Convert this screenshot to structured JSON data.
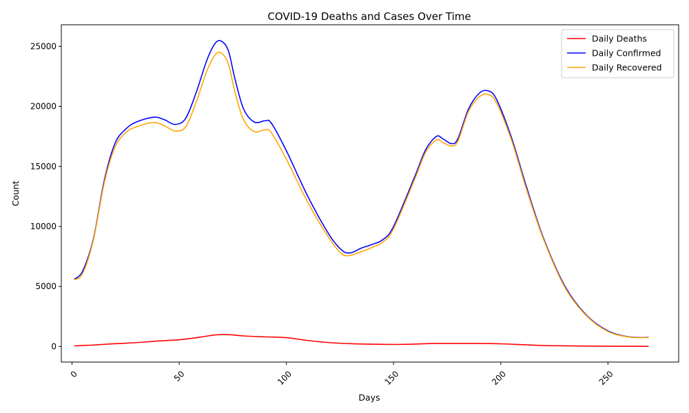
{
  "chart_data": {
    "type": "line",
    "title": "COVID-19 Deaths and Cases Over Time",
    "xlabel": "Days",
    "ylabel": "Count",
    "xlim": [
      -5,
      283
    ],
    "ylim": [
      -1300,
      26800
    ],
    "x_ticks": [
      0,
      50,
      100,
      150,
      200,
      250
    ],
    "x_tick_labels": [
      "0",
      "50",
      "100",
      "150",
      "200",
      "250"
    ],
    "y_ticks": [
      0,
      5000,
      10000,
      15000,
      20000,
      25000
    ],
    "y_tick_labels": [
      "0",
      "5000",
      "10000",
      "15000",
      "20000",
      "25000"
    ],
    "grid": false,
    "legend_position": "top-right",
    "series": [
      {
        "name": "Daily Deaths",
        "color": "#ff0000",
        "points": [
          [
            1,
            50
          ],
          [
            10,
            120
          ],
          [
            20,
            230
          ],
          [
            30,
            320
          ],
          [
            40,
            450
          ],
          [
            50,
            560
          ],
          [
            60,
            780
          ],
          [
            66,
            950
          ],
          [
            70,
            990
          ],
          [
            75,
            960
          ],
          [
            80,
            880
          ],
          [
            90,
            800
          ],
          [
            100,
            730
          ],
          [
            110,
            500
          ],
          [
            120,
            320
          ],
          [
            130,
            230
          ],
          [
            140,
            190
          ],
          [
            150,
            170
          ],
          [
            160,
            200
          ],
          [
            170,
            250
          ],
          [
            180,
            250
          ],
          [
            190,
            250
          ],
          [
            200,
            220
          ],
          [
            210,
            150
          ],
          [
            220,
            80
          ],
          [
            230,
            50
          ],
          [
            240,
            30
          ],
          [
            250,
            20
          ],
          [
            260,
            15
          ],
          [
            269,
            10
          ]
        ]
      },
      {
        "name": "Daily Confirmed",
        "color": "#0000ff",
        "points": [
          [
            1,
            5600
          ],
          [
            5,
            6300
          ],
          [
            10,
            9000
          ],
          [
            15,
            13800
          ],
          [
            20,
            16900
          ],
          [
            25,
            18100
          ],
          [
            30,
            18700
          ],
          [
            38,
            19100
          ],
          [
            43,
            18900
          ],
          [
            48,
            18500
          ],
          [
            53,
            19000
          ],
          [
            58,
            21200
          ],
          [
            63,
            23900
          ],
          [
            67,
            25300
          ],
          [
            70,
            25400
          ],
          [
            73,
            24600
          ],
          [
            76,
            22300
          ],
          [
            80,
            19800
          ],
          [
            85,
            18700
          ],
          [
            90,
            18800
          ],
          [
            93,
            18600
          ],
          [
            100,
            16300
          ],
          [
            110,
            12500
          ],
          [
            120,
            9300
          ],
          [
            126,
            8000
          ],
          [
            130,
            7800
          ],
          [
            135,
            8200
          ],
          [
            140,
            8500
          ],
          [
            145,
            8900
          ],
          [
            150,
            10000
          ],
          [
            160,
            14200
          ],
          [
            165,
            16400
          ],
          [
            170,
            17500
          ],
          [
            173,
            17300
          ],
          [
            177,
            16900
          ],
          [
            180,
            17300
          ],
          [
            185,
            19800
          ],
          [
            190,
            21100
          ],
          [
            194,
            21300
          ],
          [
            198,
            20600
          ],
          [
            205,
            17400
          ],
          [
            212,
            13300
          ],
          [
            220,
            9000
          ],
          [
            230,
            5000
          ],
          [
            240,
            2600
          ],
          [
            250,
            1300
          ],
          [
            260,
            800
          ],
          [
            269,
            760
          ]
        ]
      },
      {
        "name": "Daily Recovered",
        "color": "#ffa500",
        "points": [
          [
            1,
            5550
          ],
          [
            5,
            6100
          ],
          [
            10,
            8900
          ],
          [
            15,
            13600
          ],
          [
            20,
            16600
          ],
          [
            25,
            17800
          ],
          [
            30,
            18300
          ],
          [
            38,
            18650
          ],
          [
            43,
            18400
          ],
          [
            48,
            17950
          ],
          [
            53,
            18300
          ],
          [
            58,
            20400
          ],
          [
            63,
            23000
          ],
          [
            67,
            24350
          ],
          [
            70,
            24400
          ],
          [
            73,
            23500
          ],
          [
            76,
            21200
          ],
          [
            80,
            18900
          ],
          [
            85,
            17900
          ],
          [
            90,
            18050
          ],
          [
            93,
            17800
          ],
          [
            100,
            15600
          ],
          [
            110,
            12000
          ],
          [
            120,
            9000
          ],
          [
            126,
            7700
          ],
          [
            130,
            7600
          ],
          [
            135,
            7900
          ],
          [
            140,
            8250
          ],
          [
            145,
            8700
          ],
          [
            150,
            9800
          ],
          [
            160,
            14000
          ],
          [
            165,
            16200
          ],
          [
            170,
            17200
          ],
          [
            173,
            17000
          ],
          [
            177,
            16700
          ],
          [
            180,
            17100
          ],
          [
            185,
            19600
          ],
          [
            190,
            20800
          ],
          [
            194,
            21000
          ],
          [
            198,
            20300
          ],
          [
            205,
            17200
          ],
          [
            212,
            13100
          ],
          [
            220,
            8900
          ],
          [
            230,
            4900
          ],
          [
            240,
            2550
          ],
          [
            250,
            1250
          ],
          [
            260,
            780
          ],
          [
            269,
            740
          ]
        ]
      }
    ]
  }
}
